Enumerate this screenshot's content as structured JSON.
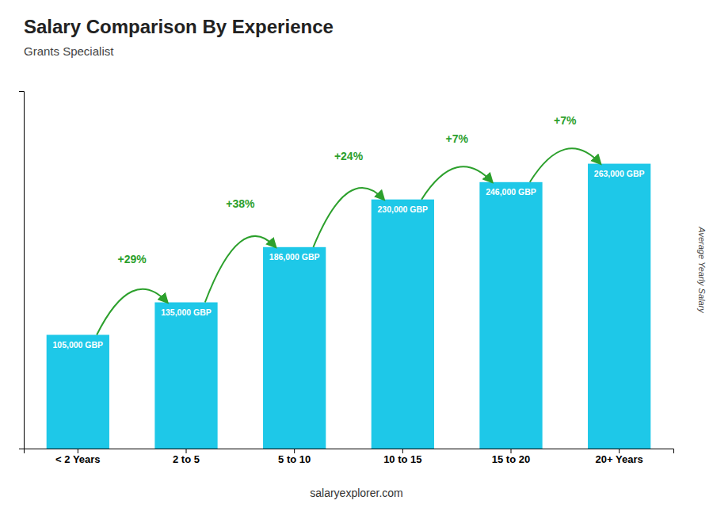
{
  "chart_data": {
    "type": "bar",
    "title": "Salary Comparison By Experience",
    "subtitle": "Grants Specialist",
    "categories": [
      "< 2 Years",
      "2 to 5",
      "5 to 10",
      "10 to 15",
      "15 to 20",
      "20+ Years"
    ],
    "values": [
      105000,
      135000,
      186000,
      230000,
      246000,
      263000
    ],
    "value_labels": [
      "105,000 GBP",
      "135,000 GBP",
      "186,000 GBP",
      "230,000 GBP",
      "246,000 GBP",
      "263,000 GBP"
    ],
    "data_labels": true,
    "color": "#1EC8E8",
    "y_label": "Average Yearly Salary",
    "ylim": [
      0,
      330000
    ],
    "tick_labels": "x",
    "annotations": [
      "+29%",
      "+38%",
      "+24%",
      "+7%",
      "+7%"
    ],
    "footer": "salaryexplorer.com"
  }
}
